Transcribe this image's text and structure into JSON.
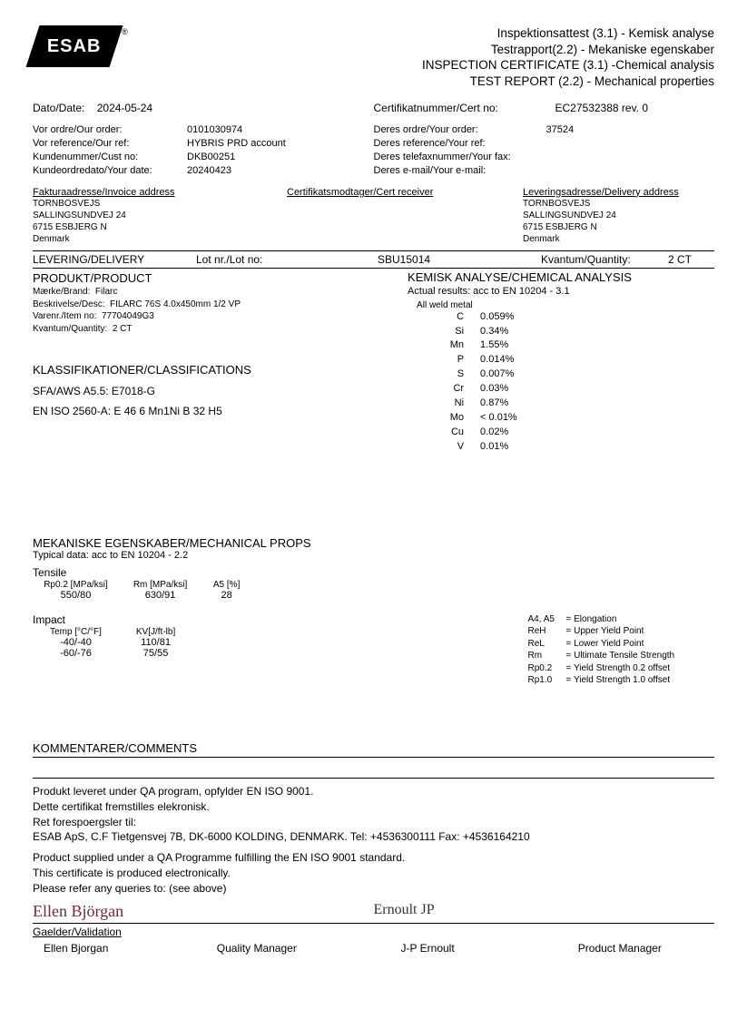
{
  "logo": {
    "text": "ESAB",
    "reg": "®"
  },
  "title": {
    "l1": "Inspektionsattest (3.1) - Kemisk analyse",
    "l2": "Testrapport(2.2) - Mekaniske egenskaber",
    "l3": "INSPECTION CERTIFICATE (3.1) -Chemical analysis",
    "l4": "TEST REPORT (2.2) - Mechanical properties"
  },
  "date": {
    "label": "Dato/Date:",
    "value": "2024-05-24"
  },
  "cert": {
    "label": "Certifikatnummer/Cert no:",
    "value": "EC27532388 rev. 0"
  },
  "ourInfo": {
    "order": {
      "k": "Vor ordre/Our order:",
      "v": "0101030974"
    },
    "ref": {
      "k": "Vor reference/Our ref:",
      "v": "HYBRIS PRD account"
    },
    "cust": {
      "k": "Kundenummer/Cust no:",
      "v": "DKB00251"
    },
    "odate": {
      "k": "Kundeordredato/Your date:",
      "v": "20240423"
    }
  },
  "yourInfo": {
    "order": {
      "k": "Deres ordre/Your order:",
      "v": "37524"
    },
    "ref": {
      "k": "Deres reference/Your ref:",
      "v": ""
    },
    "fax": {
      "k": "Deres telefaxnummer/Your fax:",
      "v": ""
    },
    "email": {
      "k": "Deres e-mail/Your e-mail:",
      "v": ""
    }
  },
  "addr": {
    "invoiceH": "Fakturaadresse/Invoice address",
    "certH": "Certifikatsmodtager/Cert receiver",
    "deliveryH": "Leveringsadresse/Delivery address",
    "lines": [
      "TORNBOSVEJS",
      "SALLINGSUNDVEJ 24",
      "6715 ESBJERG N",
      "Denmark"
    ]
  },
  "delivery": {
    "label": "LEVERING/DELIVERY",
    "lotLabel": "Lot nr./Lot no:",
    "lotValue": "SBU15014",
    "qtyLabel": "Kvantum/Quantity:",
    "qtyValue": "2 CT"
  },
  "product": {
    "header": "PRODUKT/PRODUCT",
    "brandK": "Mærke/Brand:",
    "brandV": "Filarc",
    "descK": "Beskrivelse/Desc:",
    "descV": "FILARC 76S 4.0x450mm 1/2 VP",
    "itemK": "Varenr./Item no:",
    "itemV": "77704049G3",
    "qtyK": "Kvantum/Quantity:",
    "qtyV": "2 CT"
  },
  "class": {
    "header": "KLASSIFIKATIONER/CLASSIFICATIONS",
    "l1": "SFA/AWS A5.5: E7018-G",
    "l2": "EN ISO 2560-A: E 46 6 Mn1Ni B 32 H5"
  },
  "chem": {
    "header": "KEMISK ANALYSE/CHEMICAL ANALYSIS",
    "sub": "Actual results: acc to EN 10204 - 3.1",
    "metal": "All weld metal",
    "rows": [
      {
        "el": "C",
        "v": "0.059%"
      },
      {
        "el": "Si",
        "v": "0.34%"
      },
      {
        "el": "Mn",
        "v": "1.55%"
      },
      {
        "el": "P",
        "v": "0.014%"
      },
      {
        "el": "S",
        "v": "0.007%"
      },
      {
        "el": "Cr",
        "v": "0.03%"
      },
      {
        "el": "Ni",
        "v": "0.87%"
      },
      {
        "el": "Mo",
        "v": "<  0.01%"
      },
      {
        "el": "Cu",
        "v": "0.02%"
      },
      {
        "el": "V",
        "v": "0.01%"
      }
    ]
  },
  "mech": {
    "header": "MEKANISKE EGENSKABER/MECHANICAL PROPS",
    "sub": "Typical data: acc to EN 10204 - 2.2",
    "tensileH": "Tensile",
    "tHead": [
      "Rp0.2 [MPa/ksi]",
      "Rm [MPa/ksi]",
      "A5 [%]"
    ],
    "tRow": [
      "550/80",
      "630/91",
      "28"
    ],
    "impactH": "Impact",
    "iHead": [
      "Temp [°C/°F]",
      "KV[J/ft-lb]"
    ],
    "iRows": [
      [
        "-40/-40",
        "110/81"
      ],
      [
        "-60/-76",
        "75/55"
      ]
    ]
  },
  "legend": [
    {
      "k": "A4, A5",
      "v": "= Elongation"
    },
    {
      "k": "ReH",
      "v": "= Upper Yield Point"
    },
    {
      "k": "ReL",
      "v": "= Lower Yield Point"
    },
    {
      "k": "Rm",
      "v": "= Ultimate Tensile Strength"
    },
    {
      "k": "Rp0.2",
      "v": "= Yield Strength 0.2  offset"
    },
    {
      "k": "Rp1.0",
      "v": "= Yield Strength 1.0  offset"
    }
  ],
  "comments": {
    "header": "KOMMENTARER/COMMENTS"
  },
  "footer": {
    "l1": "Produkt leveret under QA program, opfylder EN ISO 9001.",
    "l2": "Dette certifikat fremstilles elekronisk.",
    "l3": "Ret forespoergsler til:",
    "l4": " ESAB ApS, C.F Tietgensvej 7B, DK-6000 KOLDING, DENMARK. Tel: +4536300111 Fax: +4536164210",
    "l5": "Product supplied under a QA Programme fulfilling the EN ISO 9001 standard.",
    "l6": "This certificate is produced electronically.",
    "l7": "Please refer any queries to: (see above)"
  },
  "sign": {
    "s1": "Ellen Björgan",
    "s2": "Ernoult JP",
    "valid": "Gaelder/Validation",
    "n1": "Ellen Bjorgan",
    "r1": "Quality Manager",
    "n2": "J-P Ernoult",
    "r2": "Product Manager"
  }
}
